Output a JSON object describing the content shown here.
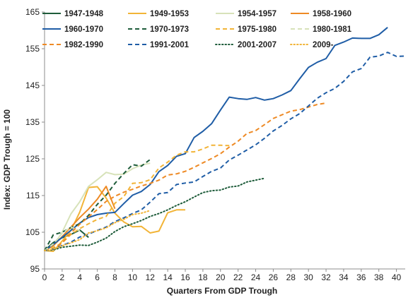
{
  "chart_data": {
    "type": "line",
    "xlabel": "Quarters From GDP Trough",
    "ylabel": "Index: GDP Trough = 100",
    "xlim": [
      0,
      41
    ],
    "ylim": [
      95,
      165
    ],
    "xticks": [
      0,
      2,
      4,
      6,
      8,
      10,
      12,
      14,
      16,
      18,
      20,
      22,
      24,
      26,
      28,
      30,
      32,
      34,
      36,
      38,
      40
    ],
    "yticks": [
      95,
      105,
      115,
      125,
      135,
      145,
      155,
      165
    ],
    "grid": false,
    "legend_position": "top",
    "series": [
      {
        "name": "1947-1948",
        "color": "#1e5c3a",
        "dash": "solid",
        "x": [
          0,
          1,
          2,
          3,
          4,
          5
        ],
        "y": [
          100,
          102.2,
          103.5,
          104.4,
          105.6,
          103.6
        ]
      },
      {
        "name": "1949-1953",
        "color": "#f2b437",
        "dash": "solid",
        "x": [
          0,
          1,
          2,
          3,
          4,
          5,
          6,
          7,
          8,
          9,
          10,
          11,
          12,
          13,
          14,
          15,
          16
        ],
        "y": [
          100,
          99.8,
          102.6,
          105.5,
          110.5,
          117.2,
          117.4,
          114.3,
          110.2,
          107.8,
          106.5,
          106.6,
          104.8,
          105.3,
          110.3,
          111.1,
          111.1
        ]
      },
      {
        "name": "1954-1957",
        "color": "#d7e2b9",
        "dash": "solid",
        "x": [
          0,
          1,
          2,
          3,
          4,
          5,
          6,
          7,
          8,
          9,
          10,
          11,
          12
        ],
        "y": [
          100,
          101.3,
          105,
          110,
          113.3,
          117.5,
          119.3,
          121.3,
          120.7,
          120.8,
          122.3,
          123.3,
          123.8
        ]
      },
      {
        "name": "1958-1960",
        "color": "#ee8a25",
        "dash": "solid",
        "x": [
          0,
          1,
          2,
          3,
          4,
          5,
          6,
          7,
          8
        ],
        "y": [
          100,
          101.3,
          103.8,
          106.4,
          109,
          111.3,
          114,
          117.5,
          111.4
        ]
      },
      {
        "name": "1960-1970",
        "color": "#1f5da6",
        "dash": "solid",
        "x": [
          0,
          1,
          2,
          3,
          4,
          5,
          6,
          7,
          8,
          9,
          10,
          11,
          12,
          13,
          14,
          15,
          16,
          17,
          18,
          19,
          20,
          21,
          22,
          23,
          24,
          25,
          26,
          27,
          28,
          29,
          30,
          31,
          32,
          33,
          34,
          35,
          36,
          37,
          38,
          39
        ],
        "y": [
          100,
          101.7,
          103.6,
          105.5,
          107.5,
          109,
          109.8,
          110.2,
          110.4,
          112.8,
          115.1,
          116.1,
          118,
          121.5,
          123.2,
          125.7,
          126.4,
          130.8,
          132.5,
          134.6,
          138.3,
          141.8,
          141.4,
          141.2,
          141.7,
          141,
          141.4,
          142.4,
          143.6,
          146.8,
          149.9,
          151.3,
          152.3,
          155.9,
          156.8,
          157.9,
          157.8,
          157.8,
          158.8,
          160.8
        ]
      },
      {
        "name": "1970-1973",
        "color": "#1e5c3a",
        "dash": "dash",
        "x": [
          0,
          1,
          2,
          3,
          4,
          5,
          6,
          7,
          8,
          9,
          10,
          11,
          12
        ],
        "y": [
          100,
          104.3,
          105,
          106.3,
          107.3,
          109.6,
          112.6,
          115.1,
          118.3,
          121,
          123.4,
          123,
          124.8
        ]
      },
      {
        "name": "1975-1980",
        "color": "#f2b437",
        "dash": "dash",
        "x": [
          0,
          1,
          2,
          3,
          4,
          5,
          6,
          7,
          8,
          9,
          10,
          11,
          12,
          13,
          14,
          15,
          16,
          17,
          18,
          19,
          20,
          21
        ],
        "y": [
          100,
          100.8,
          102.1,
          104.4,
          106,
          107.3,
          108.5,
          109.3,
          112.9,
          114.7,
          118.3,
          118.5,
          119.3,
          122.5,
          124.1,
          126,
          126.9,
          126.9,
          127.7,
          128.7,
          128.7,
          128.6
        ]
      },
      {
        "name": "1980-1981",
        "color": "#d7e2b9",
        "dash": "dash",
        "x": [
          0,
          1,
          2,
          3,
          4
        ],
        "y": [
          100,
          101.8,
          104.7,
          106.4,
          105.4
        ]
      },
      {
        "name": "1982-1990",
        "color": "#ee8a25",
        "dash": "dash",
        "x": [
          0,
          1,
          2,
          3,
          4,
          5,
          6,
          7,
          8,
          9,
          10,
          11,
          12,
          13,
          14,
          15,
          16,
          17,
          18,
          19,
          20,
          21,
          22,
          23,
          24,
          25,
          26,
          27,
          28,
          29,
          30,
          31,
          32
        ],
        "y": [
          100,
          100.4,
          102.1,
          104.8,
          107.2,
          109.2,
          111.2,
          113.4,
          114.8,
          115.9,
          116.7,
          117.6,
          118.3,
          119.2,
          120.6,
          120.9,
          121.6,
          122.7,
          123.9,
          125.1,
          126.4,
          128.2,
          129.8,
          131.9,
          132.7,
          134.3,
          136,
          137,
          138,
          138.4,
          139.1,
          139.8,
          140.2
        ]
      },
      {
        "name": "1991-2001",
        "color": "#1f5da6",
        "dash": "dash",
        "x": [
          0,
          1,
          2,
          3,
          4,
          5,
          6,
          7,
          8,
          9,
          10,
          11,
          12,
          13,
          14,
          15,
          16,
          17,
          18,
          19,
          20,
          21,
          22,
          23,
          24,
          25,
          26,
          27,
          28,
          29,
          30,
          31,
          32,
          33,
          34,
          35,
          36,
          37,
          38,
          39,
          40,
          41
        ],
        "y": [
          100,
          100.4,
          101.4,
          102.3,
          103.7,
          104.5,
          105.5,
          106.4,
          107.9,
          108.9,
          110.1,
          111.1,
          113.2,
          115.5,
          115.8,
          118,
          118.4,
          118.7,
          120.2,
          121.6,
          122.5,
          124.7,
          126,
          127.4,
          128.8,
          130.6,
          132.6,
          134.1,
          135.9,
          137.3,
          139.4,
          141.5,
          143,
          144.2,
          146.1,
          148.7,
          149.6,
          152.7,
          153,
          154,
          152.9,
          153
        ]
      },
      {
        "name": "2001-2007",
        "color": "#1e5c3a",
        "dash": "dot",
        "x": [
          0,
          1,
          2,
          3,
          4,
          5,
          6,
          7,
          8,
          9,
          10,
          11,
          12,
          13,
          14,
          15,
          16,
          17,
          18,
          19,
          20,
          21,
          22,
          23,
          24,
          25
        ],
        "y": [
          100,
          100.2,
          100.9,
          101.2,
          101.5,
          101.4,
          102.3,
          103.4,
          105.2,
          106.5,
          107.3,
          108.2,
          109.3,
          110.1,
          111.1,
          112.3,
          113.3,
          114.6,
          115.8,
          116.3,
          116.5,
          117.3,
          117.6,
          118.7,
          119.2,
          119.7
        ]
      },
      {
        "name": "2009-",
        "color": "#f2b437",
        "dash": "dot",
        "x": [
          0,
          1,
          2,
          3,
          4,
          5,
          6,
          7,
          8,
          9,
          10,
          11,
          12
        ],
        "y": [
          100,
          100.4,
          101.3,
          102.1,
          103,
          104.8,
          105.4,
          106.2,
          107.6,
          108.5,
          109.8,
          110.2,
          110.9
        ]
      }
    ]
  }
}
